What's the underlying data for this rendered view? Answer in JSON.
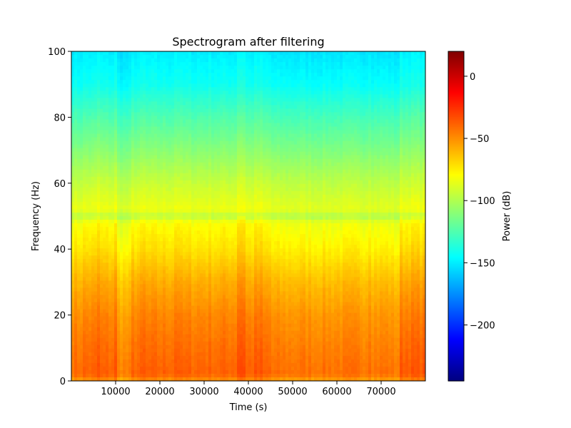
{
  "chart_data": {
    "type": "heatmap",
    "title": "Spectrogram after filtering",
    "xlabel": "Time (s)",
    "ylabel": "Frequency (Hz)",
    "xlim": [
      0,
      80000
    ],
    "ylim": [
      0,
      100
    ],
    "xticks": [
      {
        "value": 10000,
        "label": "10000"
      },
      {
        "value": 20000,
        "label": "20000"
      },
      {
        "value": 30000,
        "label": "30000"
      },
      {
        "value": 40000,
        "label": "40000"
      },
      {
        "value": 50000,
        "label": "50000"
      },
      {
        "value": 60000,
        "label": "60000"
      },
      {
        "value": 70000,
        "label": "70000"
      }
    ],
    "yticks": [
      {
        "value": 0,
        "label": "0"
      },
      {
        "value": 20,
        "label": "20"
      },
      {
        "value": 40,
        "label": "40"
      },
      {
        "value": 60,
        "label": "60"
      },
      {
        "value": 80,
        "label": "80"
      },
      {
        "value": 100,
        "label": "100"
      }
    ],
    "colormap": "jet",
    "colorbar": {
      "label": "Power (dB)",
      "range": [
        -245,
        20
      ],
      "ticks": [
        {
          "value": 0,
          "label": "0"
        },
        {
          "value": -50,
          "label": "−50"
        },
        {
          "value": -100,
          "label": "−100"
        },
        {
          "value": -150,
          "label": "−150"
        },
        {
          "value": -200,
          "label": "−200"
        }
      ]
    },
    "frequency_profile_db": [
      {
        "freq": 0,
        "power": -52
      },
      {
        "freq": 2,
        "power": -38
      },
      {
        "freq": 10,
        "power": -42
      },
      {
        "freq": 20,
        "power": -48
      },
      {
        "freq": 30,
        "power": -58
      },
      {
        "freq": 40,
        "power": -72
      },
      {
        "freq": 48,
        "power": -80
      },
      {
        "freq": 50,
        "power": -97
      },
      {
        "freq": 52,
        "power": -84
      },
      {
        "freq": 60,
        "power": -94
      },
      {
        "freq": 70,
        "power": -110
      },
      {
        "freq": 80,
        "power": -125
      },
      {
        "freq": 85,
        "power": -133
      },
      {
        "freq": 90,
        "power": -142
      },
      {
        "freq": 100,
        "power": -150
      }
    ],
    "time_variation_db": [
      {
        "start": 0,
        "end": 2500,
        "offset": -2
      },
      {
        "start": 5500,
        "end": 6500,
        "offset": 5
      },
      {
        "start": 9500,
        "end": 10500,
        "offset": 4
      },
      {
        "start": 10500,
        "end": 13500,
        "offset": -8
      },
      {
        "start": 16000,
        "end": 17000,
        "offset": 3
      },
      {
        "start": 23000,
        "end": 24500,
        "offset": 4
      },
      {
        "start": 37500,
        "end": 39500,
        "offset": 8
      },
      {
        "start": 41000,
        "end": 43000,
        "offset": 3
      },
      {
        "start": 45000,
        "end": 72000,
        "offset": -4
      },
      {
        "start": 67000,
        "end": 68000,
        "offset": 5
      },
      {
        "start": 72000,
        "end": 74000,
        "offset": -6
      },
      {
        "start": 74000,
        "end": 80000,
        "offset": 3
      }
    ]
  }
}
